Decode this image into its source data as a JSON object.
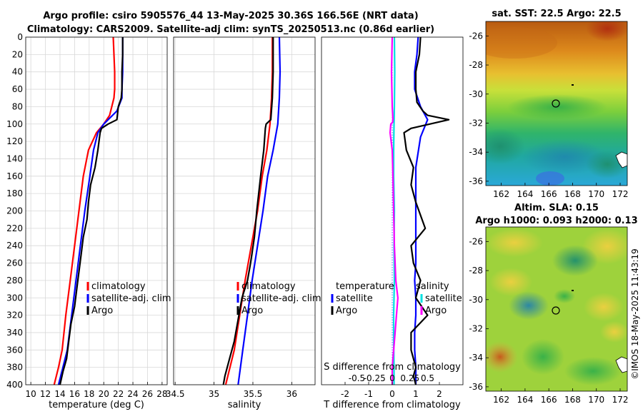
{
  "header": {
    "title_line1": "Argo profile: csiro 5905576_44 13-May-2025 30.36S 166.56E (NRT data)",
    "title_line2": "Climatology: CARS2009. Satellite-adj clim: synTS_20250513.nc (0.86d earlier)"
  },
  "colors": {
    "climatology": "#ff0000",
    "satellite": "#0000ff",
    "argo": "#000000",
    "sal_satellite": "#00e0e0",
    "sal_argo": "#ff00ff"
  },
  "chart_data": [
    {
      "id": "temperature",
      "type": "line",
      "xlabel": "temperature (deg C)",
      "ylim": [
        400,
        0
      ],
      "xlim": [
        9.3,
        28.7
      ],
      "xticks": [
        10,
        12,
        14,
        16,
        18,
        20,
        22,
        24,
        26,
        28
      ],
      "yticks": [
        0,
        20,
        40,
        60,
        80,
        100,
        120,
        140,
        160,
        180,
        200,
        220,
        240,
        260,
        280,
        300,
        320,
        340,
        360,
        380,
        400
      ],
      "legend": [
        "climatology",
        "satellite-adj. clim",
        "Argo"
      ],
      "series": [
        {
          "name": "climatology",
          "color": "#ff0000",
          "x": [
            21.3,
            21.4,
            21.5,
            21.5,
            21.4,
            20.8,
            20.0,
            19.0,
            17.9,
            17.2,
            16.6,
            16.0,
            15.4,
            14.8,
            14.3,
            13.8,
            13.2
          ],
          "y": [
            0,
            20,
            40,
            60,
            70,
            90,
            100,
            110,
            130,
            160,
            200,
            240,
            280,
            320,
            360,
            380,
            400
          ]
        },
        {
          "name": "satellite-adj. clim",
          "color": "#0000ff",
          "x": [
            22.6,
            22.6,
            22.6,
            22.5,
            22.5,
            21.8,
            20.0,
            19.2,
            18.6,
            18.1,
            17.4,
            16.8,
            16.2,
            15.6,
            15.0,
            14.4,
            13.8
          ],
          "y": [
            0,
            20,
            40,
            60,
            70,
            85,
            100,
            110,
            130,
            160,
            200,
            240,
            280,
            320,
            360,
            380,
            400
          ]
        },
        {
          "name": "Argo",
          "color": "#000000",
          "x": [
            22.6,
            22.6,
            22.5,
            22.5,
            22.4,
            22.2,
            22.0,
            21.8,
            20.6,
            19.7,
            19.5,
            19.2,
            18.8,
            18.2,
            17.9,
            17.7,
            17.2,
            16.9,
            16.6,
            16.3,
            16.0,
            15.5,
            15.2,
            14.9,
            14.4,
            14.0
          ],
          "y": [
            0,
            20,
            40,
            60,
            70,
            75,
            80,
            95,
            100,
            105,
            110,
            130,
            150,
            170,
            190,
            210,
            230,
            250,
            270,
            290,
            310,
            330,
            350,
            370,
            385,
            400
          ]
        }
      ]
    },
    {
      "id": "salinity",
      "type": "line",
      "xlabel": "salinity",
      "ylim": [
        400,
        0
      ],
      "xlim": [
        34.48,
        36.3
      ],
      "xticks": [
        34.5,
        35,
        35.5,
        36
      ],
      "xticklabels": [
        "34.5",
        "35",
        "35.5",
        "36"
      ],
      "legend": [
        "climatology",
        "satellite-adj. clim",
        "Argo"
      ],
      "series": [
        {
          "name": "climatology",
          "color": "#ff0000",
          "x": [
            35.75,
            35.75,
            35.74,
            35.72,
            35.68,
            35.62,
            35.56,
            35.48,
            35.4,
            35.33,
            35.26,
            35.15
          ],
          "y": [
            0,
            40,
            70,
            100,
            130,
            160,
            200,
            240,
            280,
            320,
            360,
            400
          ]
        },
        {
          "name": "satellite-adj. clim",
          "color": "#0000ff",
          "x": [
            35.84,
            35.85,
            35.84,
            35.82,
            35.76,
            35.69,
            35.63,
            35.56,
            35.49,
            35.43,
            35.37,
            35.31
          ],
          "y": [
            0,
            40,
            70,
            100,
            130,
            160,
            200,
            240,
            280,
            320,
            360,
            400
          ]
        },
        {
          "name": "Argo",
          "color": "#000000",
          "x": [
            35.76,
            35.76,
            35.75,
            35.73,
            35.67,
            35.66,
            35.64,
            35.6,
            35.55,
            35.52,
            35.47,
            35.43,
            35.36,
            35.32,
            35.26,
            35.2,
            35.14,
            35.12
          ],
          "y": [
            0,
            40,
            70,
            95,
            100,
            105,
            130,
            160,
            200,
            230,
            260,
            280,
            300,
            320,
            350,
            370,
            390,
            400
          ]
        }
      ]
    },
    {
      "id": "difference",
      "type": "line",
      "xlabel": "T difference from climatology",
      "xlabel_top": "S difference from climatology",
      "ylim": [
        400,
        0
      ],
      "xlim": [
        -3.0,
        3.0
      ],
      "xticks": [
        -2,
        -1,
        0,
        1,
        2
      ],
      "xticks_top": [
        -0.5,
        -0.25,
        0,
        0.25,
        0.5
      ],
      "xticklabels_top": [
        "-0.5",
        "-0.25",
        "0",
        "0.25",
        "0.5"
      ],
      "legend_temperature": {
        "heading": "temperature",
        "items": [
          "satellite",
          "Argo"
        ]
      },
      "legend_salinity": {
        "heading": "salinity",
        "items": [
          "satellite",
          "Argo"
        ]
      },
      "series": [
        {
          "name": "T satellite",
          "color": "#0000ff",
          "x": [
            1.1,
            1.05,
            0.95,
            0.95,
            1.2,
            1.5,
            1.2,
            1.0,
            1.0,
            1.0,
            0.95,
            1.0,
            1.0,
            0.95,
            0.95,
            1.0,
            1.0
          ],
          "y": [
            0,
            20,
            40,
            60,
            80,
            95,
            115,
            150,
            200,
            260,
            280,
            300,
            320,
            340,
            360,
            380,
            400
          ]
        },
        {
          "name": "T Argo",
          "color": "#000000",
          "x": [
            1.2,
            1.15,
            1.0,
            1.0,
            1.05,
            1.3,
            1.5,
            2.4,
            0.8,
            0.5,
            0.6,
            0.9,
            0.8,
            1.0,
            1.4,
            0.8,
            0.9,
            1.2,
            1.0,
            1.5,
            0.8,
            0.8,
            1.0,
            0.9,
            1.0
          ],
          "y": [
            0,
            20,
            40,
            60,
            75,
            85,
            90,
            95,
            105,
            110,
            130,
            150,
            170,
            190,
            220,
            240,
            260,
            280,
            300,
            320,
            340,
            360,
            380,
            390,
            400
          ]
        },
        {
          "name": "S satellite",
          "color": "#00e0e0",
          "x": [
            0.03,
            0.035,
            0.03,
            0.025,
            0.02,
            0.02,
            0.03,
            0.025,
            0.03,
            0.025,
            0.02,
            0.02,
            0.025,
            0.025
          ],
          "y": [
            0,
            40,
            80,
            100,
            130,
            160,
            200,
            240,
            280,
            300,
            320,
            350,
            380,
            400
          ]
        },
        {
          "name": "S Argo",
          "color": "#ff00ff",
          "x": [
            0.0,
            -0.01,
            0.0,
            0.01,
            0.005,
            -0.02,
            -0.03,
            0.0,
            0.01,
            0.02,
            0.03,
            0.05,
            0.08,
            0.06,
            0.04,
            0.02,
            0.0,
            0.0
          ],
          "y": [
            0,
            40,
            80,
            95,
            98,
            100,
            110,
            130,
            160,
            200,
            240,
            280,
            300,
            320,
            340,
            360,
            380,
            400
          ]
        }
      ]
    }
  ],
  "maps": [
    {
      "id": "sst_map",
      "title": "sat. SST: 22.5 Argo: 22.5",
      "xticks": [
        "162",
        "164",
        "166",
        "168",
        "170",
        "172"
      ],
      "yticks": [
        "-26",
        "-28",
        "-30",
        "-32",
        "-34",
        "-36"
      ],
      "float_marker": {
        "lon": 166.56,
        "lat": -30.36
      }
    },
    {
      "id": "sla_map",
      "title_line1": "Altim. SLA: 0.15",
      "title_line2": "Argo h1000: 0.093 h2000: 0.13",
      "xticks": [
        "162",
        "164",
        "166",
        "168",
        "170",
        "172"
      ],
      "yticks": [
        "-26",
        "-28",
        "-30",
        "-32",
        "-34",
        "-36"
      ],
      "float_marker": {
        "lon": 166.56,
        "lat": -30.36
      }
    }
  ],
  "credit": "©IMOS 18-May-2025 11:43:19"
}
